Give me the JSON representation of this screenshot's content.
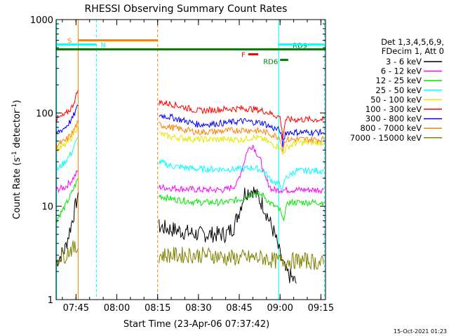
{
  "chart_data": {
    "type": "line",
    "title": "RHESSI Observing Summary Count Rates",
    "xlabel": "Start Time (23-Apr-06 07:37:42)",
    "ylabel_main": "Count Rate (s",
    "ylabel_sup1": "-1",
    "ylabel_mid": " detector",
    "ylabel_sup2": "-1",
    "ylabel_end": ")",
    "yscale": "log",
    "ylim": [
      1,
      1000
    ],
    "xlim": [
      37.7,
      136.7
    ],
    "x_ticks": [
      {
        "v": 45,
        "label": "07:45"
      },
      {
        "v": 60,
        "label": "08:00"
      },
      {
        "v": 75,
        "label": "08:15"
      },
      {
        "v": 90,
        "label": "08:30"
      },
      {
        "v": 105,
        "label": "08:45"
      },
      {
        "v": 120,
        "label": "09:00"
      },
      {
        "v": 135,
        "label": "09:15"
      }
    ],
    "y_ticks": [
      {
        "v": 1,
        "label": "1"
      },
      {
        "v": 10,
        "label": "10"
      },
      {
        "v": 100,
        "label": "100"
      },
      {
        "v": 1000,
        "label": "1000"
      }
    ],
    "legend_header": [
      "Det 1,3,4,5,6,9,",
      "FDecim 1, Att 0"
    ],
    "series": [
      {
        "name": "3 - 6 keV",
        "color": "#000000",
        "segs": [
          [
            [
              37.7,
              2.5
            ],
            [
              41,
              3.5
            ],
            [
              43,
              6
            ],
            [
              44.5,
              9
            ],
            [
              45.8,
              14
            ]
          ],
          [
            [
              75.5,
              6
            ],
            [
              90,
              5
            ],
            [
              100,
              5
            ],
            [
              103,
              6
            ],
            [
              105.5,
              10
            ],
            [
              107,
              14
            ],
            [
              110,
              15
            ],
            [
              114,
              10
            ],
            [
              118,
              5
            ],
            [
              120,
              3
            ],
            [
              122,
              2
            ],
            [
              126,
              1.5
            ]
          ]
        ]
      },
      {
        "name": "6 - 12 keV",
        "color": "#ff00ff",
        "segs": [
          [
            [
              37.7,
              15
            ],
            [
              41,
              16
            ],
            [
              43.5,
              19
            ],
            [
              45.8,
              24
            ]
          ],
          [
            [
              75.5,
              16
            ],
            [
              90,
              15
            ],
            [
              100,
              15
            ],
            [
              104,
              17
            ],
            [
              106,
              25
            ],
            [
              108,
              40
            ],
            [
              110,
              45
            ],
            [
              113,
              30
            ],
            [
              114.5,
              20
            ],
            [
              117,
              15
            ],
            [
              126,
              15
            ],
            [
              136,
              15
            ]
          ]
        ]
      },
      {
        "name": "12 - 25 keV",
        "color": "#00e600",
        "segs": [
          [
            [
              37.7,
              7
            ],
            [
              41,
              10
            ],
            [
              43.5,
              14
            ],
            [
              45.8,
              20
            ]
          ],
          [
            [
              75.5,
              13
            ],
            [
              80,
              12
            ],
            [
              90,
              11
            ],
            [
              100,
              11
            ],
            [
              106,
              12
            ],
            [
              110,
              14
            ],
            [
              114,
              13
            ],
            [
              116,
              11
            ],
            [
              118,
              10
            ],
            [
              120,
              9
            ],
            [
              121,
              7
            ],
            [
              122,
              9
            ],
            [
              123,
              11
            ],
            [
              126,
              11
            ],
            [
              136,
              11
            ]
          ]
        ]
      },
      {
        "name": "25 - 50 keV",
        "color": "#00ffff",
        "segs": [
          [
            [
              37.7,
              24
            ],
            [
              41,
              30
            ],
            [
              43.5,
              38
            ],
            [
              45.8,
              55
            ]
          ],
          [
            [
              75.5,
              30
            ],
            [
              80,
              27
            ],
            [
              90,
              25
            ],
            [
              100,
              25
            ],
            [
              106,
              25
            ],
            [
              110,
              26
            ],
            [
              114,
              24
            ],
            [
              116,
              20
            ],
            [
              118,
              18
            ],
            [
              120,
              17
            ],
            [
              121,
              15
            ],
            [
              122,
              20
            ],
            [
              126,
              24
            ],
            [
              136,
              24
            ]
          ]
        ]
      },
      {
        "name": "50 - 100 keV",
        "color": "#e6e600",
        "segs": [
          [
            [
              37.7,
              40
            ],
            [
              41,
              45
            ],
            [
              43.5,
              55
            ],
            [
              45.8,
              75
            ]
          ],
          [
            [
              75.5,
              60
            ],
            [
              80,
              55
            ],
            [
              90,
              52
            ],
            [
              100,
              52
            ],
            [
              106,
              52
            ],
            [
              110,
              55
            ],
            [
              114,
              52
            ],
            [
              116,
              48
            ],
            [
              118,
              45
            ],
            [
              120,
              43
            ],
            [
              121,
              36
            ],
            [
              122,
              42
            ],
            [
              126,
              48
            ],
            [
              136,
              48
            ]
          ]
        ]
      },
      {
        "name": "100 - 300 keV",
        "color": "#ff0000",
        "segs": [
          [
            [
              37.7,
              85
            ],
            [
              41,
              95
            ],
            [
              43.5,
              115
            ],
            [
              45.8,
              175
            ]
          ],
          [
            [
              75.5,
              130
            ],
            [
              80,
              125
            ],
            [
              90,
              105
            ],
            [
              100,
              110
            ],
            [
              106,
              112
            ],
            [
              110,
              110
            ],
            [
              114,
              105
            ],
            [
              116,
              100
            ],
            [
              118,
              95
            ],
            [
              120,
              90
            ],
            [
              121,
              55
            ],
            [
              122,
              85
            ],
            [
              126,
              85
            ],
            [
              136,
              85
            ]
          ]
        ]
      },
      {
        "name": "300 - 800 keV",
        "color": "#0000ff",
        "segs": [
          [
            [
              37.7,
              60
            ],
            [
              41,
              70
            ],
            [
              43.5,
              85
            ],
            [
              45.8,
              120
            ]
          ],
          [
            [
              75.5,
              95
            ],
            [
              80,
              90
            ],
            [
              90,
              75
            ],
            [
              100,
              78
            ],
            [
              106,
              82
            ],
            [
              110,
              80
            ],
            [
              114,
              78
            ],
            [
              116,
              72
            ],
            [
              118,
              68
            ],
            [
              120,
              65
            ],
            [
              121,
              45
            ],
            [
              122,
              62
            ],
            [
              126,
              62
            ],
            [
              136,
              62
            ]
          ]
        ]
      },
      {
        "name": "800 - 7000 keV",
        "color": "#ff8000",
        "segs": [
          [
            [
              37.7,
              45
            ],
            [
              41,
              50
            ],
            [
              43.5,
              60
            ],
            [
              45.8,
              80
            ]
          ],
          [
            [
              75.5,
              75
            ],
            [
              80,
              70
            ],
            [
              90,
              62
            ],
            [
              100,
              64
            ],
            [
              106,
              66
            ],
            [
              110,
              65
            ],
            [
              114,
              63
            ],
            [
              116,
              60
            ],
            [
              118,
              57
            ],
            [
              120,
              55
            ],
            [
              121,
              40
            ],
            [
              122,
              52
            ],
            [
              126,
              52
            ],
            [
              136,
              52
            ]
          ]
        ]
      },
      {
        "name": "7000 - 15000 keV",
        "color": "#808000",
        "segs": [
          [
            [
              37.7,
              2.5
            ],
            [
              39,
              3
            ],
            [
              41,
              3
            ],
            [
              43,
              3.5
            ],
            [
              45.8,
              3.5
            ]
          ],
          [
            [
              75.5,
              3
            ],
            [
              80,
              3
            ],
            [
              90,
              3
            ],
            [
              95,
              3
            ],
            [
              100,
              2.8
            ],
            [
              105,
              2.8
            ],
            [
              110,
              2.8
            ],
            [
              114,
              2.8
            ],
            [
              118,
              2.6
            ],
            [
              122,
              2.6
            ],
            [
              126,
              2.6
            ],
            [
              131,
              2.6
            ],
            [
              136,
              2.4
            ]
          ]
        ]
      }
    ],
    "annotations": [
      {
        "label": "S",
        "color": "#ff8000",
        "x0": 45.8,
        "x1": 75,
        "y": 600
      },
      {
        "label": "N",
        "color": "#00ffff",
        "x0": 37.7,
        "x1": 52.5,
        "y": 540
      },
      {
        "label": "F",
        "color": "#ff0000",
        "x0": 108.3,
        "x1": 112,
        "y": 425
      },
      {
        "label": "RD9",
        "color": "#008000",
        "x0": 37.7,
        "x1": 136.7,
        "y": 480
      },
      {
        "label": "RD6",
        "color": "#008000",
        "x0": 120,
        "x1": 123,
        "y": 370
      },
      {
        "label": "",
        "color": "#00ffff",
        "x0": 119.5,
        "x1": 136.3,
        "y": 540
      }
    ],
    "vlines": [
      {
        "x": 37.9,
        "color": "#00ffff",
        "dash": false
      },
      {
        "x": 45.8,
        "color": "#ff8000",
        "dash": false
      },
      {
        "x": 52.5,
        "color": "#00ffff",
        "dash": true
      },
      {
        "x": 75,
        "color": "#ff8000",
        "dash": true
      },
      {
        "x": 119.5,
        "color": "#00ffff",
        "dash": false
      },
      {
        "x": 136.3,
        "color": "#00ffff",
        "dash": true
      }
    ],
    "gaps": [
      [
        46,
        75.3
      ]
    ],
    "footer_date": "15-Oct-2021 01:23"
  }
}
